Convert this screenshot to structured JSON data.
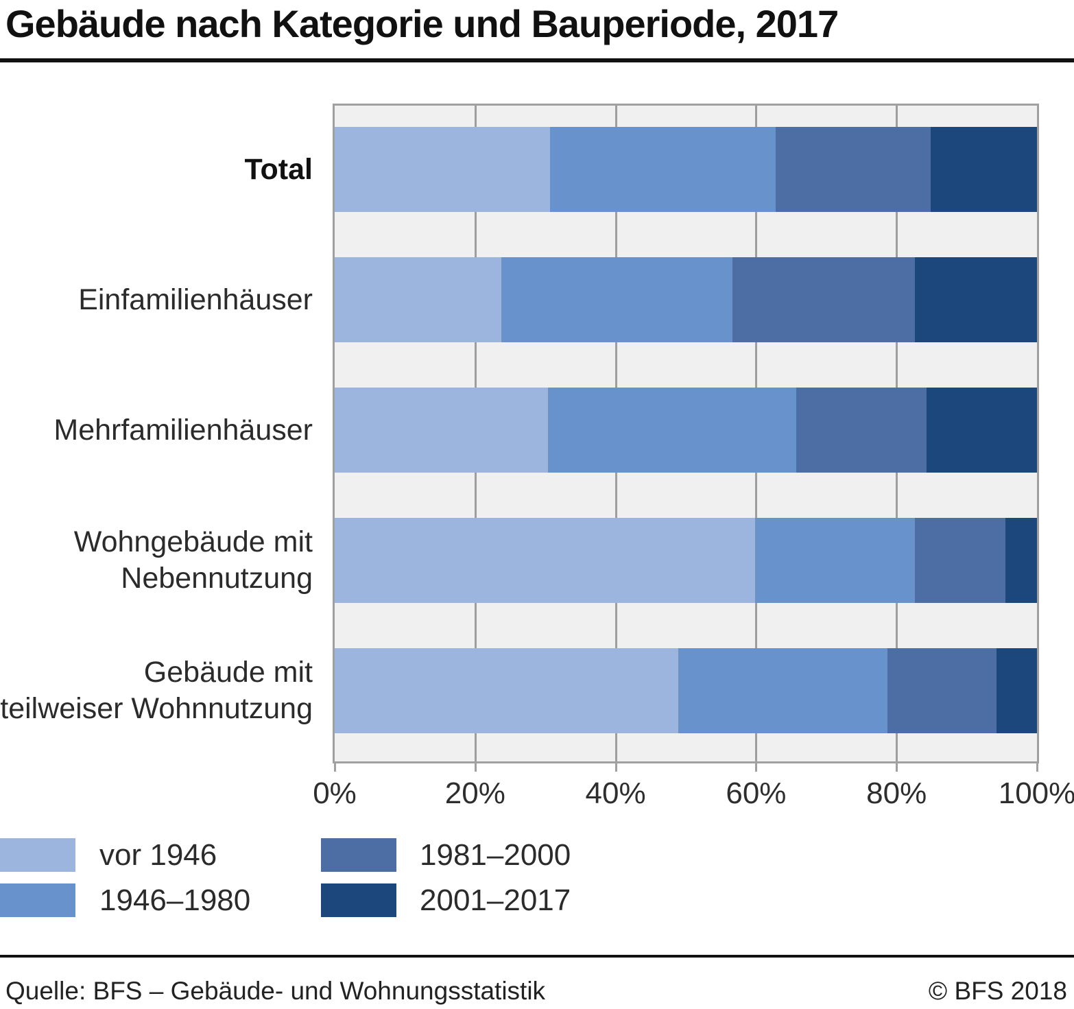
{
  "title": "Gebäude nach Kategorie und Bauperiode, 2017",
  "footer": {
    "source": "Quelle: BFS – Gebäude- und Wohnungsstatistik",
    "copyright": "© BFS 2018"
  },
  "chart_data": {
    "type": "bar",
    "orientation": "horizontal",
    "stacked": true,
    "unit": "%",
    "title": "Gebäude nach Kategorie und Bauperiode, 2017",
    "categories": [
      "Total",
      "Einfamilienhäuser",
      "Mehrfamilienhäuser",
      "Wohngebäude mit Nebennutzung",
      "Gebäude mit teilweiser Wohnnutzung"
    ],
    "category_label_lines": [
      [
        "Total"
      ],
      [
        "Einfamilienhäuser"
      ],
      [
        "Mehrfamilienhäuser"
      ],
      [
        "Wohngebäude mit",
        "Nebennutzung"
      ],
      [
        "Gebäude mit",
        "teilweiser Wohnnutzung"
      ]
    ],
    "series": [
      {
        "name": "vor 1946",
        "color": "#9BB5DF",
        "values": [
          30.7,
          23.7,
          30.4,
          59.9,
          48.9
        ]
      },
      {
        "name": "1946–1980",
        "color": "#6892CB",
        "values": [
          32.1,
          32.9,
          35.3,
          22.7,
          29.8
        ]
      },
      {
        "name": "1981–2000",
        "color": "#4C6EA5",
        "values": [
          22.1,
          26.0,
          18.6,
          12.9,
          15.5
        ]
      },
      {
        "name": "2001–2017",
        "color": "#1C477C",
        "values": [
          15.1,
          17.4,
          15.7,
          4.5,
          5.8
        ]
      }
    ],
    "xlabel": "",
    "ylabel": "",
    "xlim": [
      0,
      100
    ],
    "x_ticks": [
      "0%",
      "20%",
      "40%",
      "60%",
      "80%",
      "100%"
    ],
    "grid": true,
    "plot_background": "#F0F0F0",
    "legend_position": "bottom-left"
  }
}
